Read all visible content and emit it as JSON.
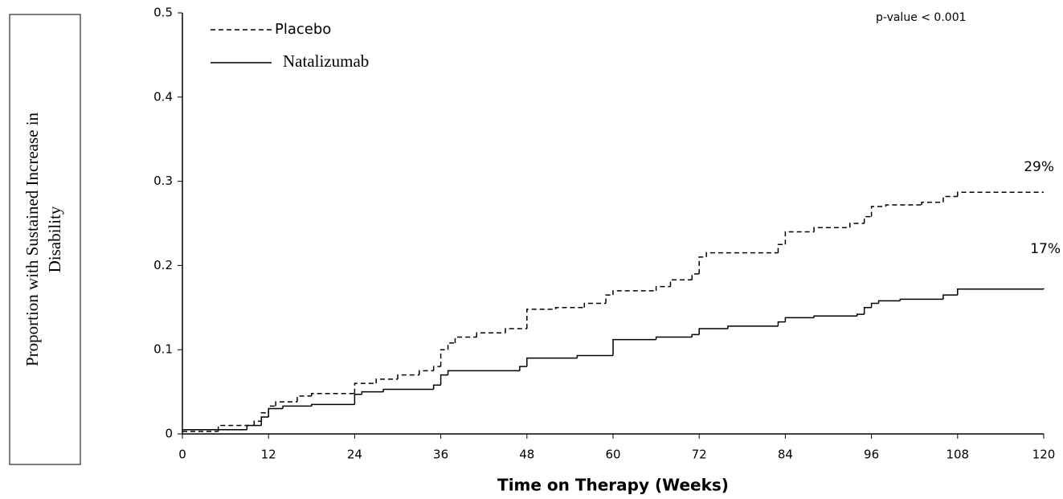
{
  "chart_data": {
    "type": "step",
    "xlabel": "Time on Therapy (Weeks)",
    "ylabel": [
      "Proportion with Sustained Increase in",
      "Disability"
    ],
    "xlim": [
      0,
      120
    ],
    "xticks": [
      0,
      12,
      24,
      36,
      48,
      60,
      72,
      84,
      96,
      108,
      120
    ],
    "ylim": [
      0,
      0.5
    ],
    "yticks": [
      0,
      0.1,
      0.2,
      0.3,
      0.4,
      0.5
    ],
    "legend": "upper left",
    "annotations": [
      "p-value  < 0.001",
      "29%",
      "17%"
    ],
    "series": [
      {
        "name": "Placebo",
        "color": "#000000",
        "style": "dashed",
        "x": [
          0,
          5,
          10,
          11,
          12,
          13,
          16,
          18,
          24,
          27,
          30,
          33,
          35,
          36,
          37,
          38,
          41,
          45,
          48,
          52,
          56,
          59,
          60,
          66,
          68,
          71,
          72,
          73,
          83,
          84,
          88,
          93,
          95,
          96,
          98,
          103,
          106,
          108,
          120
        ],
        "values": [
          0.003,
          0.01,
          0.015,
          0.025,
          0.033,
          0.038,
          0.045,
          0.048,
          0.06,
          0.065,
          0.07,
          0.075,
          0.08,
          0.1,
          0.108,
          0.115,
          0.12,
          0.125,
          0.148,
          0.15,
          0.155,
          0.165,
          0.17,
          0.175,
          0.183,
          0.19,
          0.21,
          0.215,
          0.225,
          0.24,
          0.245,
          0.25,
          0.258,
          0.27,
          0.272,
          0.275,
          0.282,
          0.287,
          0.287
        ]
      },
      {
        "name": "Natalizumab",
        "color": "#000000",
        "style": "solid",
        "x": [
          0,
          9,
          11,
          12,
          14,
          18,
          24,
          25,
          28,
          35,
          36,
          37,
          47,
          48,
          55,
          60,
          66,
          71,
          72,
          76,
          83,
          84,
          88,
          94,
          95,
          96,
          97,
          100,
          106,
          108,
          120
        ],
        "values": [
          0.005,
          0.01,
          0.02,
          0.03,
          0.033,
          0.035,
          0.047,
          0.05,
          0.053,
          0.058,
          0.07,
          0.075,
          0.08,
          0.09,
          0.093,
          0.112,
          0.115,
          0.118,
          0.125,
          0.128,
          0.133,
          0.138,
          0.14,
          0.142,
          0.15,
          0.155,
          0.158,
          0.16,
          0.165,
          0.172,
          0.173
        ]
      }
    ]
  }
}
